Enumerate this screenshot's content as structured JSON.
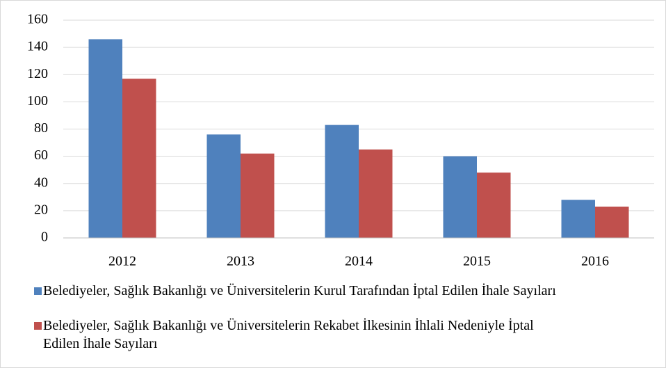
{
  "chart_data": {
    "type": "bar",
    "categories": [
      "2012",
      "2013",
      "2014",
      "2015",
      "2016"
    ],
    "series": [
      {
        "name": "Belediyeler, Sağlık Bakanlığı ve Üniversitelerin Kurul Tarafından İptal Edilen İhale Sayıları",
        "color": "#4f81bd",
        "values": [
          146,
          76,
          83,
          60,
          28
        ]
      },
      {
        "name": "Belediyeler, Sağlık Bakanlığı ve Üniversitelerin Rekabet İlkesinin İhlali Nedeniyle İptal Edilen İhale Sayıları",
        "color": "#c0504d",
        "values": [
          117,
          62,
          65,
          48,
          23
        ]
      }
    ],
    "ylim": [
      0,
      160
    ],
    "yticks": [
      0,
      20,
      40,
      60,
      80,
      100,
      120,
      140,
      160
    ],
    "grid": true,
    "legend": "bottom"
  }
}
